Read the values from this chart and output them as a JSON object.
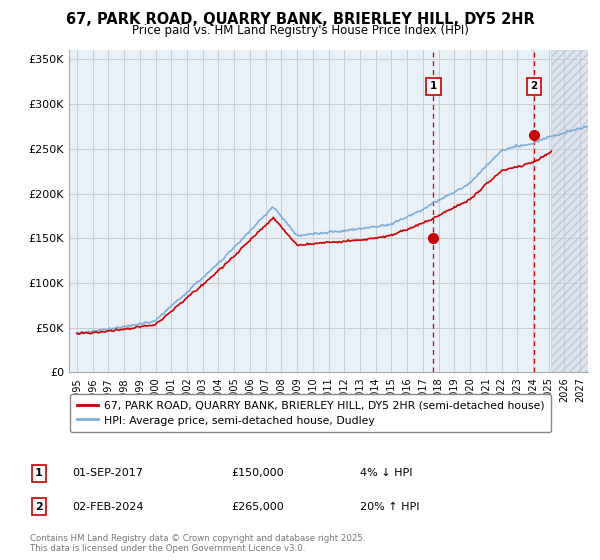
{
  "title": "67, PARK ROAD, QUARRY BANK, BRIERLEY HILL, DY5 2HR",
  "subtitle": "Price paid vs. HM Land Registry's House Price Index (HPI)",
  "ylabel_ticks": [
    "£0",
    "£50K",
    "£100K",
    "£150K",
    "£200K",
    "£250K",
    "£300K",
    "£350K"
  ],
  "ytick_values": [
    0,
    50000,
    100000,
    150000,
    200000,
    250000,
    300000,
    350000
  ],
  "ylim": [
    0,
    360000
  ],
  "xlim_start": 1994.5,
  "xlim_end": 2027.5,
  "marker1_x": 2017.67,
  "marker1_y": 150000,
  "marker1_label": "1",
  "marker1_date": "01-SEP-2017",
  "marker1_price": "£150,000",
  "marker1_hpi": "4% ↓ HPI",
  "marker2_x": 2024.08,
  "marker2_y": 265000,
  "marker2_label": "2",
  "marker2_date": "02-FEB-2024",
  "marker2_price": "£265,000",
  "marker2_hpi": "20% ↑ HPI",
  "hpi_line_color": "#7daed4",
  "price_line_color": "#cc0000",
  "marker_box_color": "#cc0000",
  "vline_color": "#cc0000",
  "grid_color": "#cccccc",
  "bg_color": "#e8f0f8",
  "hatch_color": "#c8d4e4",
  "legend_label1": "67, PARK ROAD, QUARRY BANK, BRIERLEY HILL, DY5 2HR (semi-detached house)",
  "legend_label2": "HPI: Average price, semi-detached house, Dudley",
  "footnote": "Contains HM Land Registry data © Crown copyright and database right 2025.\nThis data is licensed under the Open Government Licence v3.0.",
  "future_shade_start": 2025.17
}
